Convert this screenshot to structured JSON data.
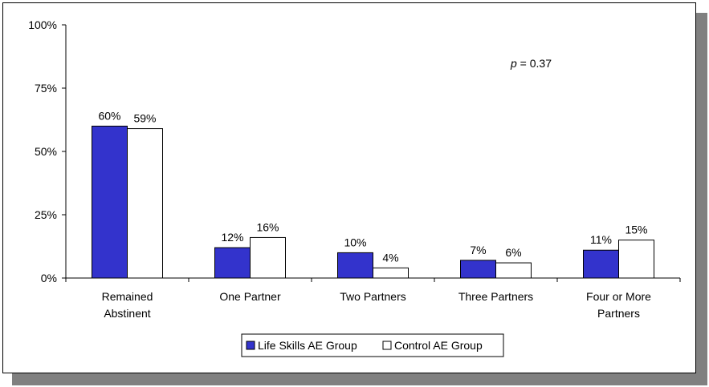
{
  "chart_data": {
    "type": "bar",
    "title": "",
    "xlabel": "",
    "ylabel": "",
    "ylim": [
      0,
      100
    ],
    "yticks": [
      "0%",
      "25%",
      "50%",
      "75%",
      "100%"
    ],
    "categories": [
      "Remained Abstinent",
      "One Partner",
      "Two Partners",
      "Three Partners",
      "Four or More Partners"
    ],
    "category_lines": [
      [
        "Remained",
        "Abstinent"
      ],
      [
        "One Partner"
      ],
      [
        "Two Partners"
      ],
      [
        "Three Partners"
      ],
      [
        "Four or More",
        "Partners"
      ]
    ],
    "series": [
      {
        "name": "Life Skills AE Group",
        "color": "#3333CC",
        "values": [
          60,
          12,
          10,
          7,
          11
        ]
      },
      {
        "name": "Control AE Group",
        "color": "#FFFFFF",
        "values": [
          59,
          16,
          4,
          6,
          15
        ]
      }
    ],
    "annotations": [
      {
        "text_italic": "p",
        "text": " = 0.37"
      }
    ],
    "grid": false,
    "legend_position": "bottom"
  }
}
